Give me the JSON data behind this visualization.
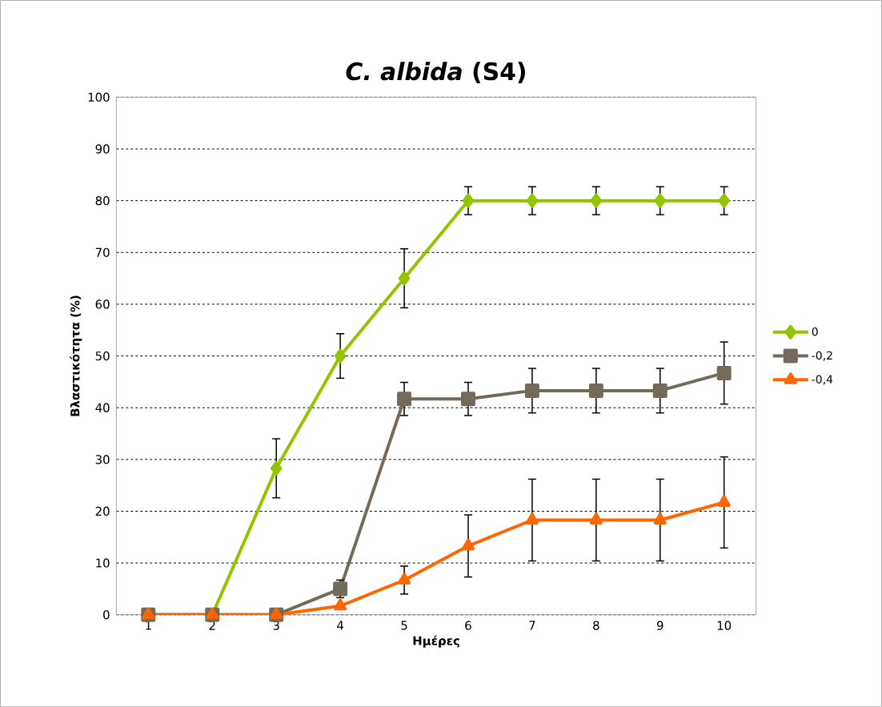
{
  "chart_data": {
    "type": "line",
    "title": "*C. albida* (S4)",
    "xlabel": "Ημέρες",
    "ylabel": "Βλαστικότητα (%)",
    "categories": [
      "1",
      "2",
      "3",
      "4",
      "5",
      "6",
      "7",
      "8",
      "9",
      "10"
    ],
    "ylim": [
      0,
      100
    ],
    "yticks": [
      0,
      10,
      20,
      30,
      40,
      50,
      60,
      70,
      80,
      90,
      100
    ],
    "grid": "y",
    "legend": "right",
    "series": [
      {
        "name": "0",
        "color": "#92c400",
        "marker": "diamond",
        "values": [
          0,
          0,
          28.3,
          50,
          65,
          80,
          80,
          80,
          80,
          80
        ],
        "errors": [
          null,
          null,
          5.7,
          4.3,
          5.7,
          2.7,
          2.7,
          2.7,
          2.7,
          2.7
        ]
      },
      {
        "name": "-0,2",
        "color": "#736a5a",
        "marker": "square",
        "values": [
          0,
          0,
          0,
          5,
          41.7,
          41.7,
          43.3,
          43.3,
          43.3,
          46.7
        ],
        "errors": [
          null,
          null,
          null,
          1.7,
          3.2,
          3.2,
          4.3,
          4.3,
          4.3,
          6
        ]
      },
      {
        "name": "-0,4",
        "color": "#ff6600",
        "marker": "triangle",
        "values": [
          0,
          0,
          0,
          1.7,
          6.7,
          13.3,
          18.3,
          18.3,
          18.3,
          21.7
        ],
        "errors": [
          null,
          null,
          null,
          null,
          2.7,
          6,
          7.9,
          7.9,
          7.9,
          8.8
        ]
      }
    ]
  }
}
